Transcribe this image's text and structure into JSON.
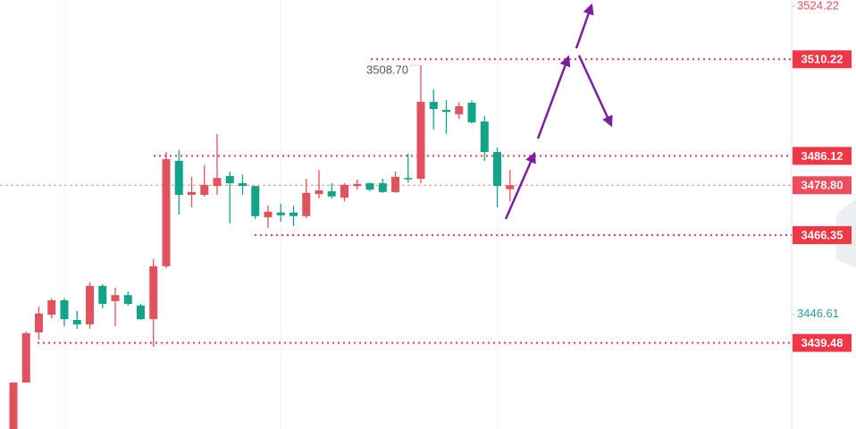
{
  "chart_data": {
    "type": "candlestick",
    "up_color": "#e0525e",
    "down_color": "#12a488",
    "open": [
      3418.0,
      3429.6,
      3442.1,
      3446.5,
      3450.1,
      3445.2,
      3444.1,
      3453.7,
      3449.9,
      3451.4,
      3448.8,
      3445.4,
      3458.6,
      3484.9,
      3476.4,
      3476.4,
      3478.6,
      3481.1,
      3479.3,
      3478.6,
      3470.8,
      3472.0,
      3472.0,
      3471.1,
      3476.6,
      3477.3,
      3475.7,
      3478.6,
      3479.3,
      3479.3,
      3477.1,
      3480.6,
      3480.4,
      3499.6,
      3497.6,
      3496.5,
      3499.4,
      3494.7,
      3487.1,
      3477.8
    ],
    "high": [
      3429.6,
      3442.3,
      3448.5,
      3450.6,
      3450.6,
      3447.4,
      3454.6,
      3454.1,
      3453.2,
      3452.3,
      3449.2,
      3460.4,
      3487.1,
      3487.6,
      3480.9,
      3483.8,
      3491.6,
      3482.2,
      3481.5,
      3478.6,
      3473.7,
      3474.2,
      3473.7,
      3480.4,
      3482.6,
      3479.3,
      3479.3,
      3480.2,
      3479.5,
      3480.4,
      3482.2,
      3486.7,
      3508.7,
      3502.7,
      3500.0,
      3499.4,
      3500.0,
      3496.0,
      3488.2,
      3482.6
    ],
    "low": [
      3418.0,
      3429.6,
      3440.3,
      3445.6,
      3443.6,
      3443.0,
      3443.0,
      3448.1,
      3443.6,
      3448.8,
      3445.2,
      3438.5,
      3458.1,
      3471.5,
      3473.3,
      3476.0,
      3476.4,
      3469.3,
      3476.4,
      3470.4,
      3468.2,
      3469.7,
      3468.6,
      3470.6,
      3475.5,
      3475.5,
      3474.8,
      3477.7,
      3477.3,
      3476.9,
      3476.9,
      3479.5,
      3479.3,
      3492.7,
      3491.6,
      3495.4,
      3494.2,
      3484.9,
      3473.3,
      3474.8
    ],
    "close": [
      3429.6,
      3441.9,
      3446.8,
      3450.1,
      3445.4,
      3444.1,
      3453.7,
      3449.2,
      3451.4,
      3449.2,
      3445.4,
      3458.6,
      3485.3,
      3476.4,
      3477.1,
      3478.9,
      3480.6,
      3479.3,
      3478.6,
      3471.1,
      3472.2,
      3471.3,
      3471.1,
      3476.9,
      3477.5,
      3476.0,
      3478.9,
      3479.1,
      3477.7,
      3477.1,
      3480.9,
      3480.4,
      3499.6,
      3497.8,
      3497.1,
      3498.5,
      3494.5,
      3487.1,
      3478.6,
      3478.8
    ],
    "ylim": [
      3418,
      3525
    ],
    "yticks": [
      3524.22,
      3446.61
    ],
    "ytick_colors": [
      "#e8505b",
      "#26a69a"
    ],
    "levels": [
      3510.22,
      3486.12,
      3466.35,
      3439.48
    ],
    "level_color": "#f23645",
    "last_price": {
      "value": 3478.8,
      "label": "3478.80"
    },
    "annotations": [
      "3508.70"
    ]
  }
}
